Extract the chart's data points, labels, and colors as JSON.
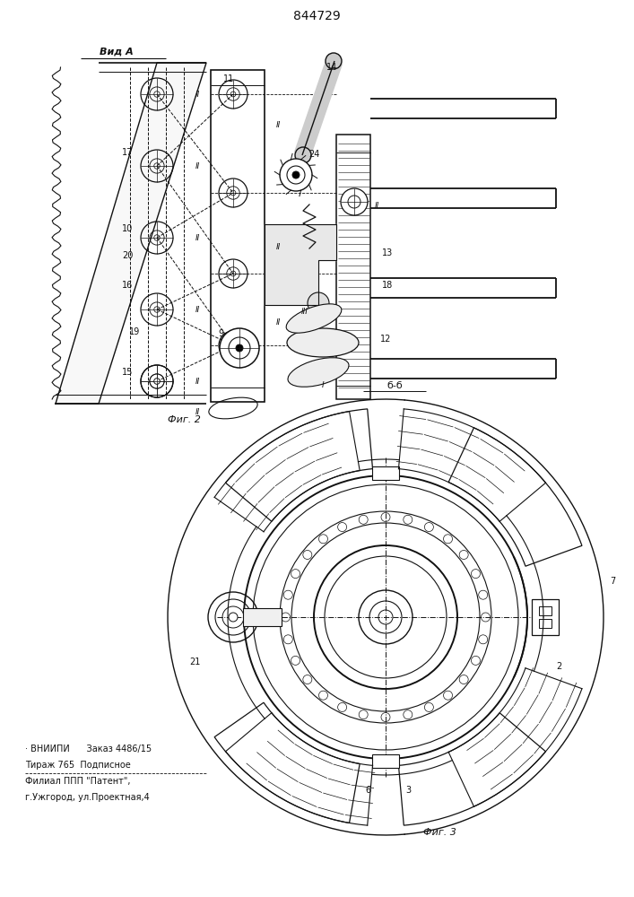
{
  "patent_number": "844729",
  "bg": "#ffffff",
  "lc": "#111111",
  "fig2_caption": "Фиг. 2",
  "fig3_caption": "Фиг. 3",
  "vid_a": "Вид А",
  "b_b": "б-б",
  "footer1": "· ВНИИПИ      Заказ 4486/15",
  "footer2": "Тираж 765  Подписное",
  "footer3": "Филиал ППП \"Патент\",",
  "footer4": "г.Ужгород, ул.Проектная,4"
}
